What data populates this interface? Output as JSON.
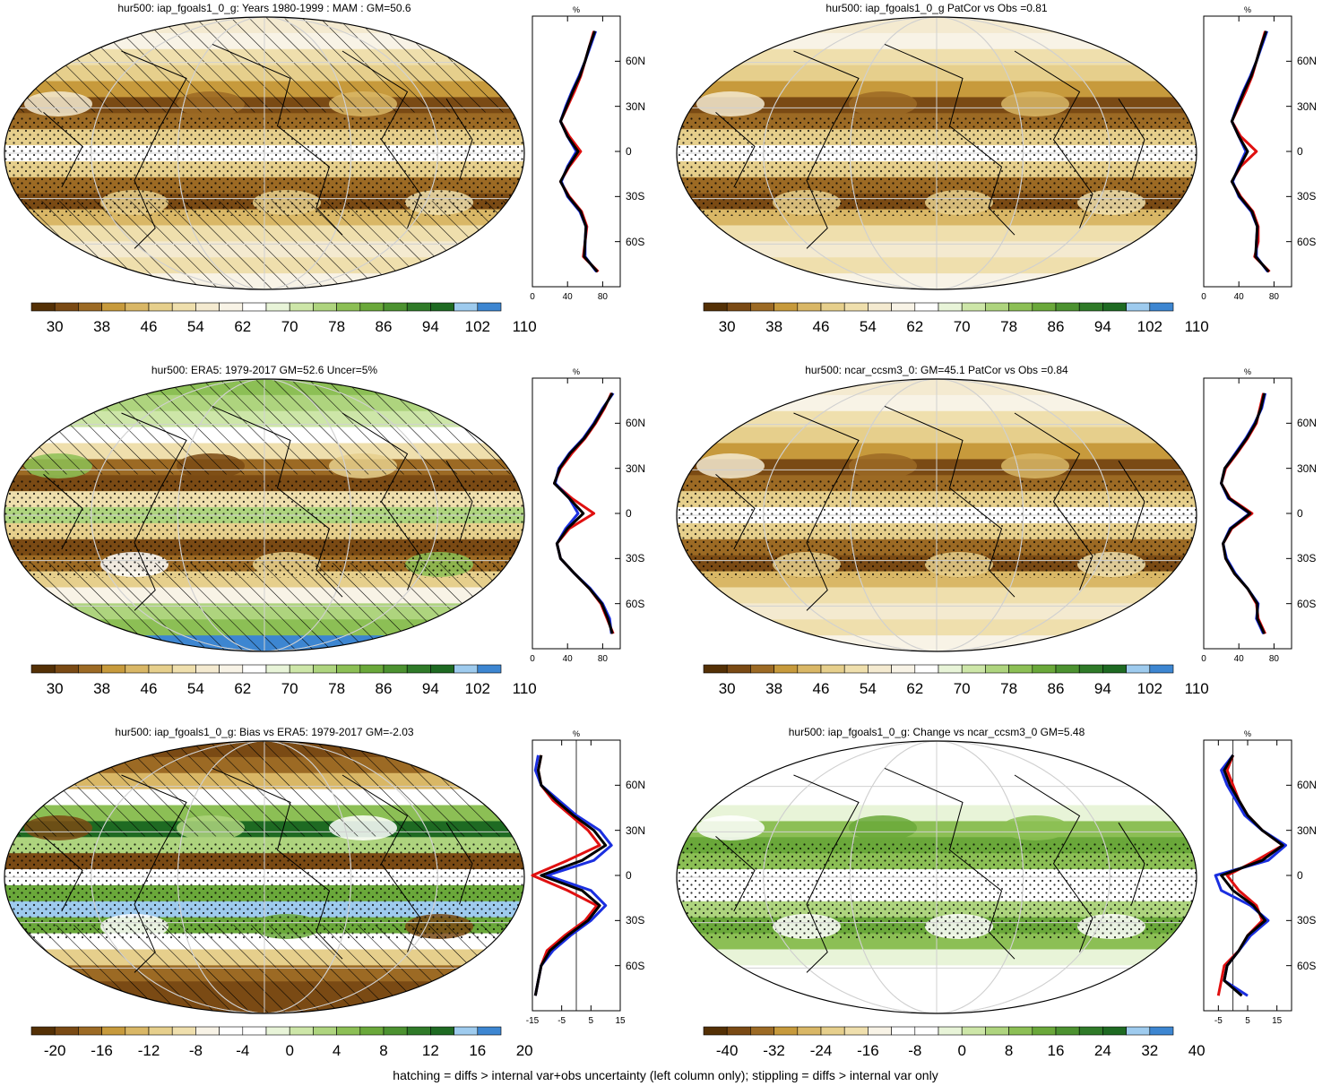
{
  "palette": {
    "abs": [
      "#543005",
      "#7a4a14",
      "#9c6a24",
      "#c79a3c",
      "#d9b766",
      "#e6cf8c",
      "#efdfad",
      "#f4ead0",
      "#f8f3e6",
      "#ffffff",
      "#e8f4d8",
      "#cde6a8",
      "#aed47e",
      "#8cbf55",
      "#6aa83a",
      "#4c9230",
      "#2f7a28",
      "#1e6a22",
      "#9ecbee",
      "#3d86d1"
    ],
    "bias": [
      "#543005",
      "#7a4a14",
      "#9c6a24",
      "#c79a3c",
      "#d9b766",
      "#e6cf8c",
      "#efdfad",
      "#f8f3e6",
      "#ffffff",
      "#ffffff",
      "#e8f4d8",
      "#cde6a8",
      "#aed47e",
      "#8cbf55",
      "#6aa83a",
      "#4c9230",
      "#2f7a28",
      "#1e6a22",
      "#9ecbee",
      "#3d86d1"
    ],
    "line_colors": {
      "model": "#e01010",
      "obs": "#1a2fe0",
      "mean": "#000000"
    }
  },
  "colorbars": {
    "abs_labels": [
      "30",
      "38",
      "46",
      "54",
      "62",
      "70",
      "78",
      "86",
      "94",
      "102",
      "110"
    ],
    "bias_labels": [
      "-20",
      "-16",
      "-12",
      "-8",
      "-4",
      "0",
      "4",
      "8",
      "12",
      "16",
      "20"
    ],
    "change_labels": [
      "-40",
      "-32",
      "-24",
      "-16",
      "-8",
      "0",
      "8",
      "16",
      "24",
      "32",
      "40"
    ]
  },
  "panels": [
    {
      "id": "p1",
      "title": "hur500: iap_fgoals1_0_g: Years 1980-1999 : MAM : GM=50.6",
      "kind": "abs",
      "hatched": true
    },
    {
      "id": "p2",
      "title": "hur500: iap_fgoals1_0_g PatCor vs Obs =0.81",
      "kind": "abs",
      "hatched": false
    },
    {
      "id": "p3",
      "title": "hur500: ERA5: 1979-2017 GM=52.6 Uncer=5%",
      "kind": "abs_era",
      "hatched": true
    },
    {
      "id": "p4",
      "title": "hur500: ncar_ccsm3_0: GM=45.1 PatCor vs Obs =0.84",
      "kind": "abs",
      "hatched": false
    },
    {
      "id": "p5",
      "title": "hur500: iap_fgoals1_0_g: Bias vs ERA5: 1979-2017 GM=-2.03",
      "kind": "bias",
      "hatched": true
    },
    {
      "id": "p6",
      "title": "hur500: iap_fgoals1_0_g: Change vs ncar_ccsm3_0 GM=5.48",
      "kind": "change",
      "hatched": false
    }
  ],
  "profiles": {
    "unit": "%",
    "lat_ticks": [
      "60N",
      "30N",
      "0",
      "30S",
      "60S"
    ],
    "abs_xticks": [
      "0",
      "40",
      "80"
    ],
    "bias_xticks": [
      "-15",
      "-5",
      "5",
      "15"
    ],
    "change_xticks": [
      "-5",
      "5",
      "15"
    ]
  },
  "chart_data": [
    {
      "type": "line",
      "panel": "p1-profile",
      "xlim": [
        0,
        100
      ],
      "ylim": [
        -90,
        90
      ],
      "lat": [
        80,
        70,
        60,
        50,
        40,
        30,
        20,
        10,
        0,
        -10,
        -20,
        -30,
        -40,
        -50,
        -60,
        -70,
        -80
      ],
      "series": [
        {
          "values": [
            70,
            65,
            60,
            55,
            48,
            40,
            32,
            42,
            55,
            42,
            32,
            42,
            56,
            62,
            60,
            58,
            75
          ]
        },
        {
          "values": [
            72,
            66,
            60,
            53,
            45,
            38,
            32,
            40,
            50,
            40,
            33,
            40,
            54,
            61,
            60,
            60,
            73
          ]
        },
        {
          "values": [
            71,
            65,
            60,
            54,
            46,
            39,
            32,
            40,
            52,
            41,
            32,
            41,
            55,
            61,
            60,
            59,
            74
          ]
        }
      ]
    },
    {
      "type": "line",
      "panel": "p2-profile",
      "xlim": [
        0,
        100
      ],
      "ylim": [
        -90,
        90
      ],
      "lat": [
        80,
        70,
        60,
        50,
        40,
        30,
        20,
        10,
        0,
        -10,
        -20,
        -30,
        -40,
        -50,
        -60,
        -70,
        -80
      ],
      "series": [
        {
          "values": [
            70,
            65,
            60,
            55,
            48,
            40,
            32,
            42,
            60,
            42,
            32,
            42,
            56,
            62,
            62,
            58,
            75
          ]
        },
        {
          "values": [
            72,
            66,
            60,
            53,
            45,
            38,
            32,
            40,
            48,
            40,
            33,
            40,
            54,
            61,
            60,
            60,
            73
          ]
        },
        {
          "values": [
            71,
            65,
            60,
            54,
            46,
            39,
            32,
            40,
            50,
            41,
            32,
            41,
            55,
            61,
            60,
            59,
            74
          ]
        }
      ]
    },
    {
      "type": "line",
      "panel": "p3-profile",
      "xlim": [
        0,
        100
      ],
      "ylim": [
        -90,
        90
      ],
      "lat": [
        80,
        70,
        60,
        50,
        40,
        30,
        20,
        10,
        0,
        -10,
        -20,
        -30,
        -40,
        -50,
        -60,
        -70,
        -80
      ],
      "series": [
        {
          "values": [
            90,
            82,
            72,
            60,
            45,
            32,
            25,
            45,
            70,
            42,
            28,
            32,
            48,
            65,
            78,
            85,
            92
          ]
        },
        {
          "values": [
            92,
            80,
            70,
            58,
            42,
            30,
            26,
            42,
            52,
            38,
            28,
            32,
            48,
            66,
            80,
            88,
            90
          ]
        },
        {
          "values": [
            91,
            81,
            71,
            59,
            43,
            31,
            25,
            42,
            58,
            40,
            28,
            32,
            48,
            65,
            79,
            86,
            91
          ]
        }
      ]
    },
    {
      "type": "line",
      "panel": "p4-profile",
      "xlim": [
        0,
        100
      ],
      "ylim": [
        -90,
        90
      ],
      "lat": [
        80,
        70,
        60,
        50,
        40,
        30,
        20,
        10,
        0,
        -10,
        -20,
        -30,
        -40,
        -50,
        -60,
        -70,
        -80
      ],
      "series": [
        {
          "values": [
            68,
            64,
            60,
            50,
            38,
            25,
            20,
            30,
            55,
            32,
            22,
            25,
            35,
            50,
            60,
            62,
            70
          ]
        },
        {
          "values": [
            70,
            66,
            58,
            48,
            36,
            24,
            20,
            28,
            52,
            30,
            22,
            26,
            36,
            50,
            62,
            60,
            68
          ]
        },
        {
          "values": [
            69,
            65,
            59,
            49,
            37,
            24,
            20,
            29,
            53,
            31,
            22,
            25,
            35,
            50,
            61,
            61,
            69
          ]
        }
      ]
    },
    {
      "type": "line",
      "panel": "p5-profile",
      "xlim": [
        -15,
        15
      ],
      "ylim": [
        -90,
        90
      ],
      "lat": [
        80,
        70,
        60,
        50,
        40,
        30,
        20,
        10,
        0,
        -10,
        -20,
        -30,
        -40,
        -50,
        -60,
        -70,
        -80
      ],
      "series": [
        {
          "values": [
            -12,
            -13,
            -12,
            -8,
            -2,
            4,
            8,
            -3,
            -15,
            -3,
            7,
            3,
            -4,
            -10,
            -12,
            -13,
            -14
          ]
        },
        {
          "values": [
            -13,
            -14,
            -12,
            -6,
            0,
            8,
            12,
            6,
            -10,
            5,
            10,
            5,
            -2,
            -8,
            -12,
            -13,
            -14
          ]
        },
        {
          "values": [
            -12,
            -13,
            -12,
            -7,
            -1,
            6,
            10,
            2,
            -12,
            2,
            8,
            4,
            -3,
            -9,
            -12,
            -13,
            -14
          ]
        }
      ]
    },
    {
      "type": "line",
      "panel": "p6-profile",
      "xlim": [
        -10,
        20
      ],
      "ylim": [
        -90,
        90
      ],
      "lat": [
        80,
        70,
        60,
        50,
        40,
        30,
        20,
        10,
        0,
        -10,
        -20,
        -30,
        -40,
        -50,
        -60,
        -70,
        -80
      ],
      "series": [
        {
          "values": [
            0,
            -2,
            0,
            2,
            5,
            10,
            17,
            8,
            -2,
            2,
            8,
            10,
            5,
            2,
            -3,
            -4,
            -5
          ]
        },
        {
          "values": [
            0,
            -4,
            -2,
            1,
            4,
            10,
            18,
            12,
            -6,
            -4,
            6,
            12,
            6,
            2,
            -2,
            -3,
            5
          ]
        },
        {
          "values": [
            0,
            -3,
            -1,
            2,
            5,
            10,
            17,
            10,
            -4,
            0,
            7,
            11,
            5,
            2,
            -2,
            -3,
            3
          ]
        }
      ]
    }
  ],
  "footer": "hatching = diffs > internal var+obs uncertainty (left column only); stippling = diffs > internal var only"
}
